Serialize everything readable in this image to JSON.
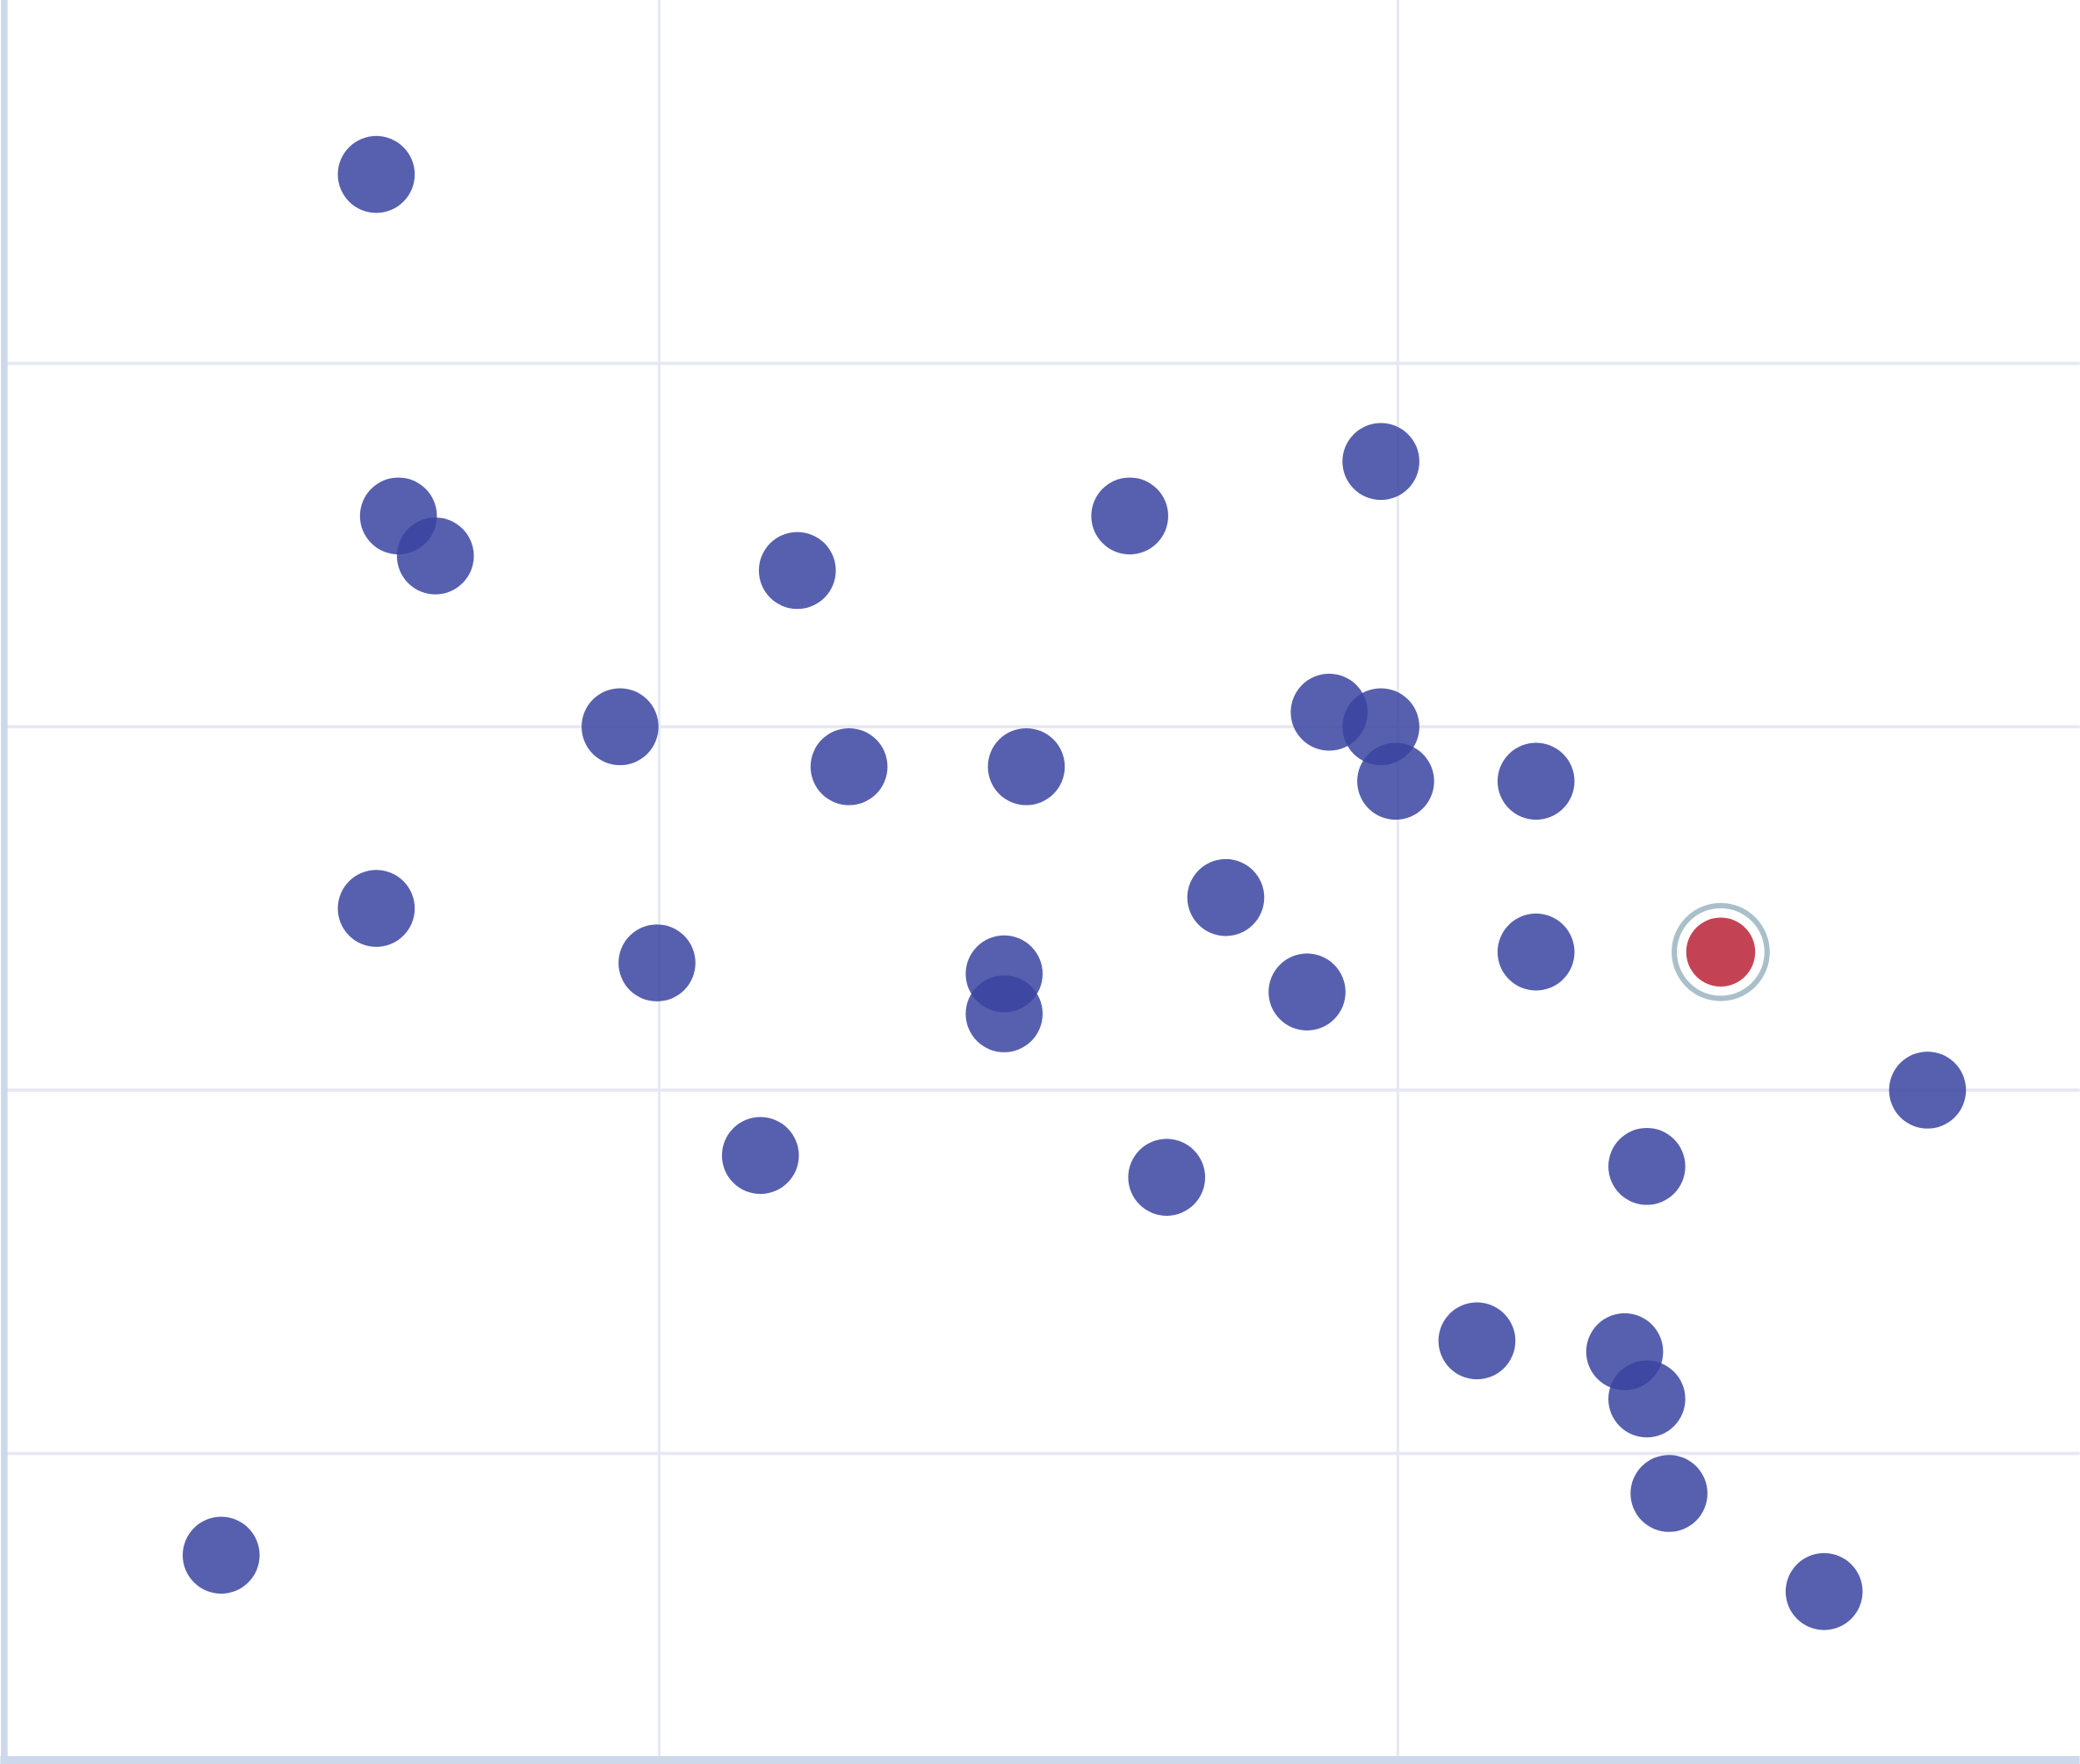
{
  "chart_data": {
    "type": "scatter",
    "title": "",
    "xlabel": "",
    "ylabel": "",
    "xlim": [
      0,
      2.806
    ],
    "ylim": [
      0,
      4.84
    ],
    "grid": true,
    "x_gridlines": [
      0.883,
      1.883
    ],
    "y_gridlines": [
      0.84,
      1.84,
      2.84,
      3.84
    ],
    "colors": {
      "point": "#3a44a0",
      "highlight": "#c0394b",
      "highlight_ring": "#a9bfca",
      "axis": "#cdd8ea",
      "grid": "#e6e9f4"
    },
    "series": [
      {
        "points": [
          [
            0.5,
            4.36
          ],
          [
            0.53,
            3.42
          ],
          [
            0.58,
            3.31
          ],
          [
            1.07,
            3.27
          ],
          [
            1.52,
            3.42
          ],
          [
            1.86,
            3.57
          ],
          [
            0.83,
            2.84
          ],
          [
            1.14,
            2.73
          ],
          [
            1.38,
            2.73
          ],
          [
            1.79,
            2.88
          ],
          [
            1.86,
            2.84
          ],
          [
            1.88,
            2.69
          ],
          [
            2.07,
            2.69
          ],
          [
            0.5,
            2.34
          ],
          [
            0.88,
            2.19
          ],
          [
            1.35,
            2.16
          ],
          [
            1.35,
            2.05
          ],
          [
            1.65,
            2.37
          ],
          [
            1.76,
            2.11
          ],
          [
            2.07,
            2.22
          ],
          [
            2.6,
            1.84
          ],
          [
            1.02,
            1.66
          ],
          [
            1.57,
            1.6
          ],
          [
            2.22,
            1.63
          ],
          [
            1.99,
            1.15
          ],
          [
            2.19,
            1.12
          ],
          [
            2.22,
            0.99
          ],
          [
            2.25,
            0.73
          ],
          [
            0.29,
            0.56
          ],
          [
            2.46,
            0.46
          ]
        ]
      }
    ],
    "highlighted_point": [
      2.32,
      2.22
    ]
  }
}
